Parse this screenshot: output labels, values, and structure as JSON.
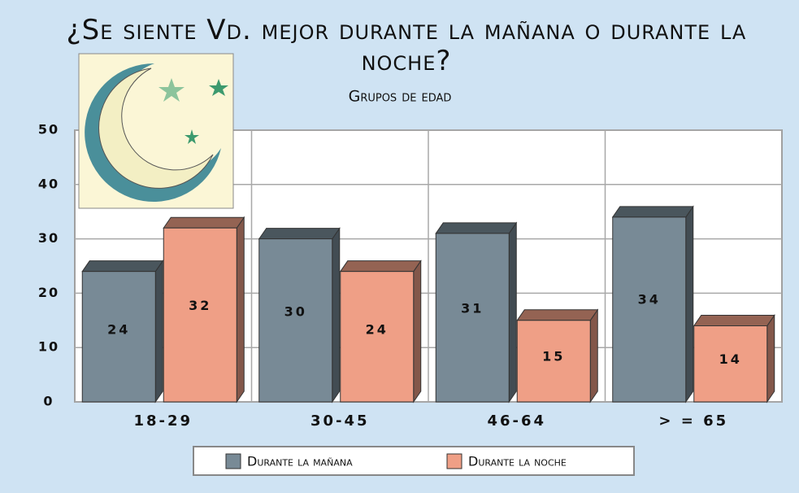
{
  "chart_data": {
    "type": "bar3d",
    "title": "¿Se siente Vd. mejor durante la mañana o durante la noche?",
    "subtitle": "Grupos de edad",
    "categories": [
      "18-29",
      "30-45",
      "46-64",
      "> = 65"
    ],
    "series": [
      {
        "name": "Durante la mañana",
        "color": "#788a96",
        "values": [
          24,
          30,
          31,
          34
        ]
      },
      {
        "name": "Durante la noche",
        "color": "#ef9f86",
        "values": [
          32,
          24,
          15,
          14
        ]
      }
    ],
    "ylim": [
      0,
      50
    ],
    "yticks": [
      0,
      10,
      20,
      30,
      40,
      50
    ],
    "grid": true,
    "legend": "bottom"
  }
}
